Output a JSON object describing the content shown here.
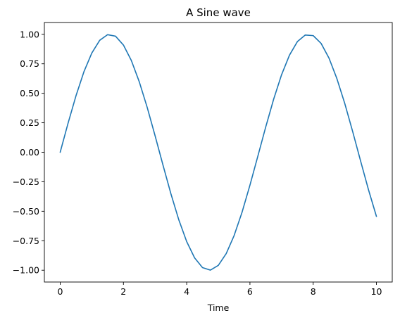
{
  "chart_data": {
    "type": "line",
    "title": "A Sine wave",
    "xlabel": "Time",
    "ylabel": "",
    "xlim": [
      -0.5,
      10.5
    ],
    "ylim": [
      -1.1,
      1.1
    ],
    "xticks": [
      0,
      2,
      4,
      6,
      8,
      10
    ],
    "xtick_labels": [
      "0",
      "2",
      "4",
      "6",
      "8",
      "10"
    ],
    "yticks": [
      -1.0,
      -0.75,
      -0.5,
      -0.25,
      0.0,
      0.25,
      0.5,
      0.75,
      1.0
    ],
    "ytick_labels": [
      "−1.00",
      "−0.75",
      "−0.50",
      "−0.25",
      "0.00",
      "0.25",
      "0.50",
      "0.75",
      "1.00"
    ],
    "grid": false,
    "legend": "none",
    "series": [
      {
        "color": "#1f77b4",
        "x": [
          0,
          0.25,
          0.5,
          0.75,
          1.0,
          1.25,
          1.5,
          1.75,
          2.0,
          2.25,
          2.5,
          2.75,
          3.0,
          3.25,
          3.5,
          3.75,
          4.0,
          4.25,
          4.5,
          4.75,
          5.0,
          5.25,
          5.5,
          5.75,
          6.0,
          6.25,
          6.5,
          6.75,
          7.0,
          7.25,
          7.5,
          7.75,
          8.0,
          8.25,
          8.5,
          8.75,
          9.0,
          9.25,
          9.5,
          9.75,
          10.0
        ],
        "y": [
          0.0,
          0.247,
          0.479,
          0.682,
          0.841,
          0.949,
          0.997,
          0.984,
          0.909,
          0.778,
          0.598,
          0.382,
          0.141,
          -0.108,
          -0.351,
          -0.572,
          -0.757,
          -0.895,
          -0.978,
          -0.999,
          -0.959,
          -0.859,
          -0.706,
          -0.509,
          -0.279,
          -0.033,
          0.215,
          0.45,
          0.657,
          0.823,
          0.938,
          0.994,
          0.989,
          0.923,
          0.798,
          0.624,
          0.412,
          0.174,
          -0.075,
          -0.319,
          -0.544
        ]
      }
    ]
  }
}
